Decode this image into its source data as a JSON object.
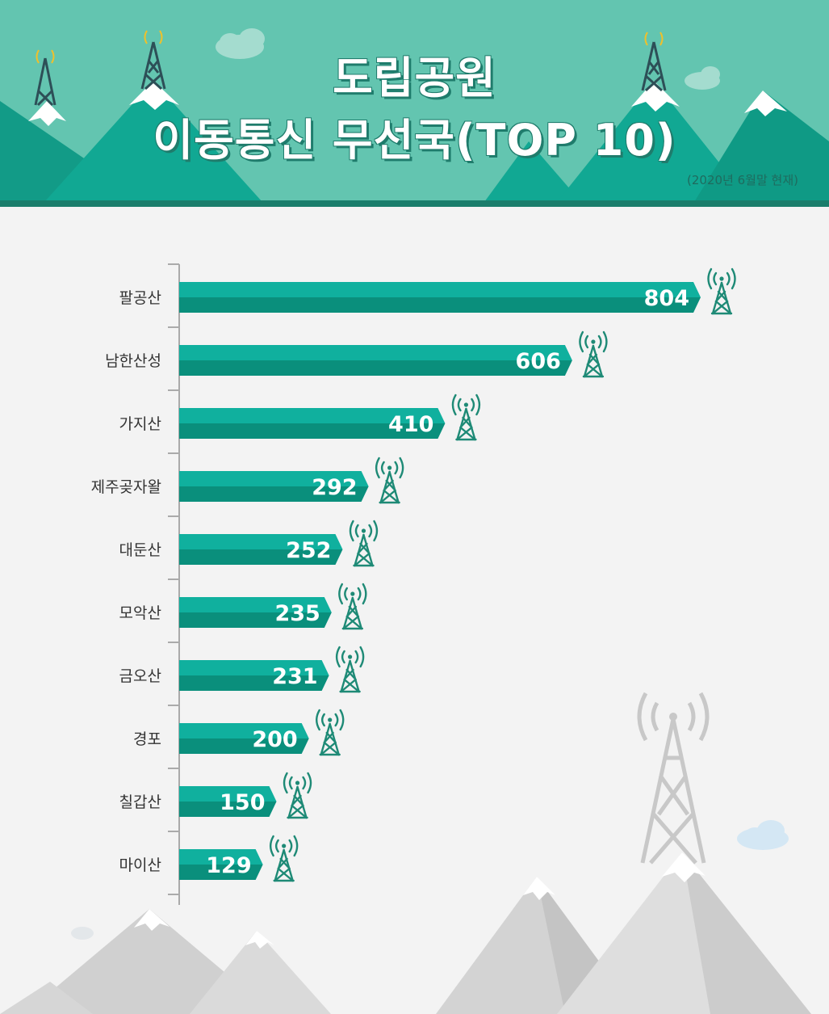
{
  "header": {
    "title_line1": "도립공원",
    "title_line2": "이동통신 무선국(TOP 10)",
    "subtitle": "(2020년 6월말 현재)"
  },
  "colors": {
    "header_bg": "#63c5b0",
    "bar_top": "#10b09e",
    "bar_bottom": "#0a8f7c",
    "tower": "#1e8a76",
    "axis": "#aaaaaa"
  },
  "icons": [
    "antenna-tower-icon",
    "cloud-icon",
    "mountain-icon"
  ],
  "chart_data": {
    "type": "bar",
    "orientation": "horizontal",
    "categories": [
      "팔공산",
      "남한산성",
      "가지산",
      "제주곶자왈",
      "대둔산",
      "모악산",
      "금오산",
      "경포",
      "칠갑산",
      "마이산"
    ],
    "values": [
      804,
      606,
      410,
      292,
      252,
      235,
      231,
      200,
      150,
      129
    ],
    "xlim": [
      0,
      804
    ],
    "grid": false,
    "legend": "none"
  }
}
